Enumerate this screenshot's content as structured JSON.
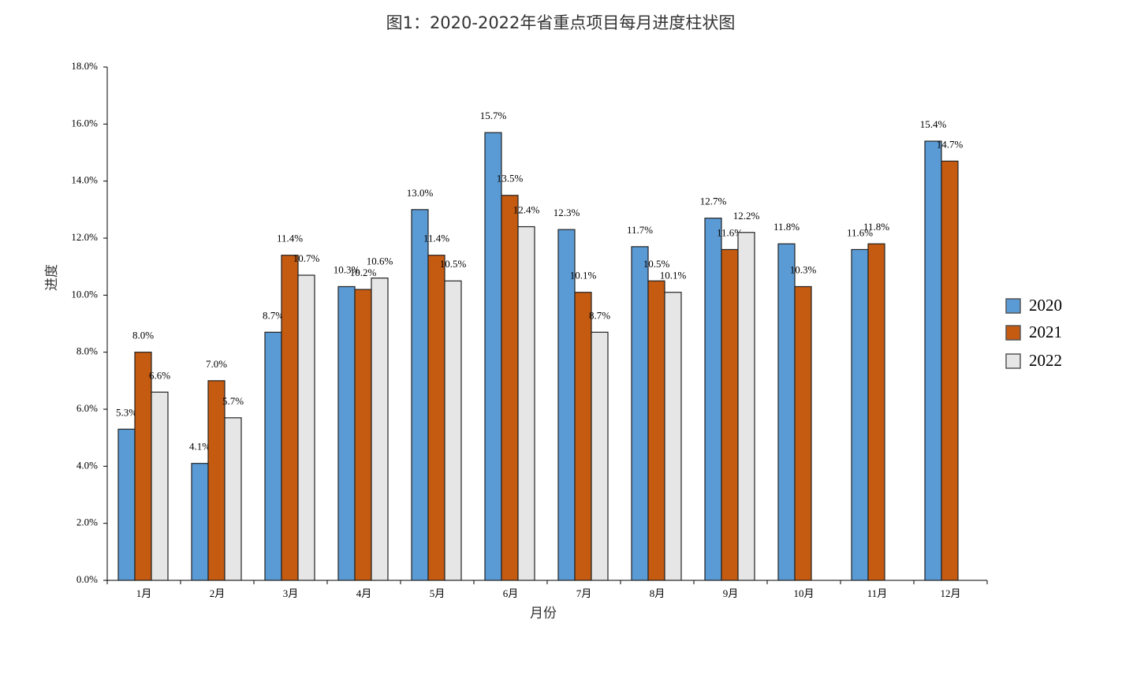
{
  "chart_data": {
    "type": "bar",
    "title": "图1：2020-2022年省重点项目每月进度柱状图",
    "x_label": "月份",
    "y_label": "进度",
    "categories": [
      "1月",
      "2月",
      "3月",
      "4月",
      "5月",
      "6月",
      "7月",
      "8月",
      "9月",
      "10月",
      "11月",
      "12月"
    ],
    "series": [
      {
        "name": "2020",
        "color": "#5b9bd5",
        "values": [
          5.3,
          4.1,
          8.7,
          10.3,
          13.0,
          15.7,
          12.3,
          11.7,
          12.7,
          11.8,
          11.6,
          15.4
        ],
        "value_labels": [
          "5.3%",
          "4.1%",
          "8.7%",
          "10.3%",
          "13.0%",
          "15.7%",
          "12.3%",
          "11.7%",
          "12.7%",
          "11.8%",
          "11.6%",
          "15.4%"
        ]
      },
      {
        "name": "2021",
        "color": "#c55a11",
        "values": [
          8.0,
          7.0,
          11.4,
          10.2,
          11.4,
          13.5,
          10.1,
          10.5,
          11.6,
          10.3,
          11.8,
          14.7
        ],
        "value_labels": [
          "8.0%",
          "7.0%",
          "11.4%",
          "10.2%",
          "11.4%",
          "13.5%",
          "10.1%",
          "10.5%",
          "11.6%",
          "10.3%",
          "11.8%",
          "14.7%"
        ]
      },
      {
        "name": "2022",
        "color": "#e7e6e6",
        "values": [
          6.6,
          5.7,
          10.7,
          10.6,
          10.5,
          12.4,
          8.7,
          10.1,
          12.2,
          null,
          null,
          null
        ],
        "value_labels": [
          "6.6%",
          "5.7%",
          "10.7%",
          "10.6%",
          "10.5%",
          "12.4%",
          "8.7%",
          "10.1%",
          "12.2%",
          null,
          null,
          null
        ]
      }
    ],
    "ylim": [
      0,
      18
    ],
    "yticks": [
      {
        "value": 0,
        "label": "0.0%"
      },
      {
        "value": 2,
        "label": "2.0%"
      },
      {
        "value": 4,
        "label": "4.0%"
      },
      {
        "value": 6,
        "label": "6.0%"
      },
      {
        "value": 8,
        "label": "8.0%"
      },
      {
        "value": 10,
        "label": "10.0%"
      },
      {
        "value": 12,
        "label": "12.0%"
      },
      {
        "value": 14,
        "label": "14.0%"
      },
      {
        "value": 16,
        "label": "16.0%"
      },
      {
        "value": 18,
        "label": "18.0%"
      }
    ],
    "grid": false,
    "legend": "right"
  }
}
